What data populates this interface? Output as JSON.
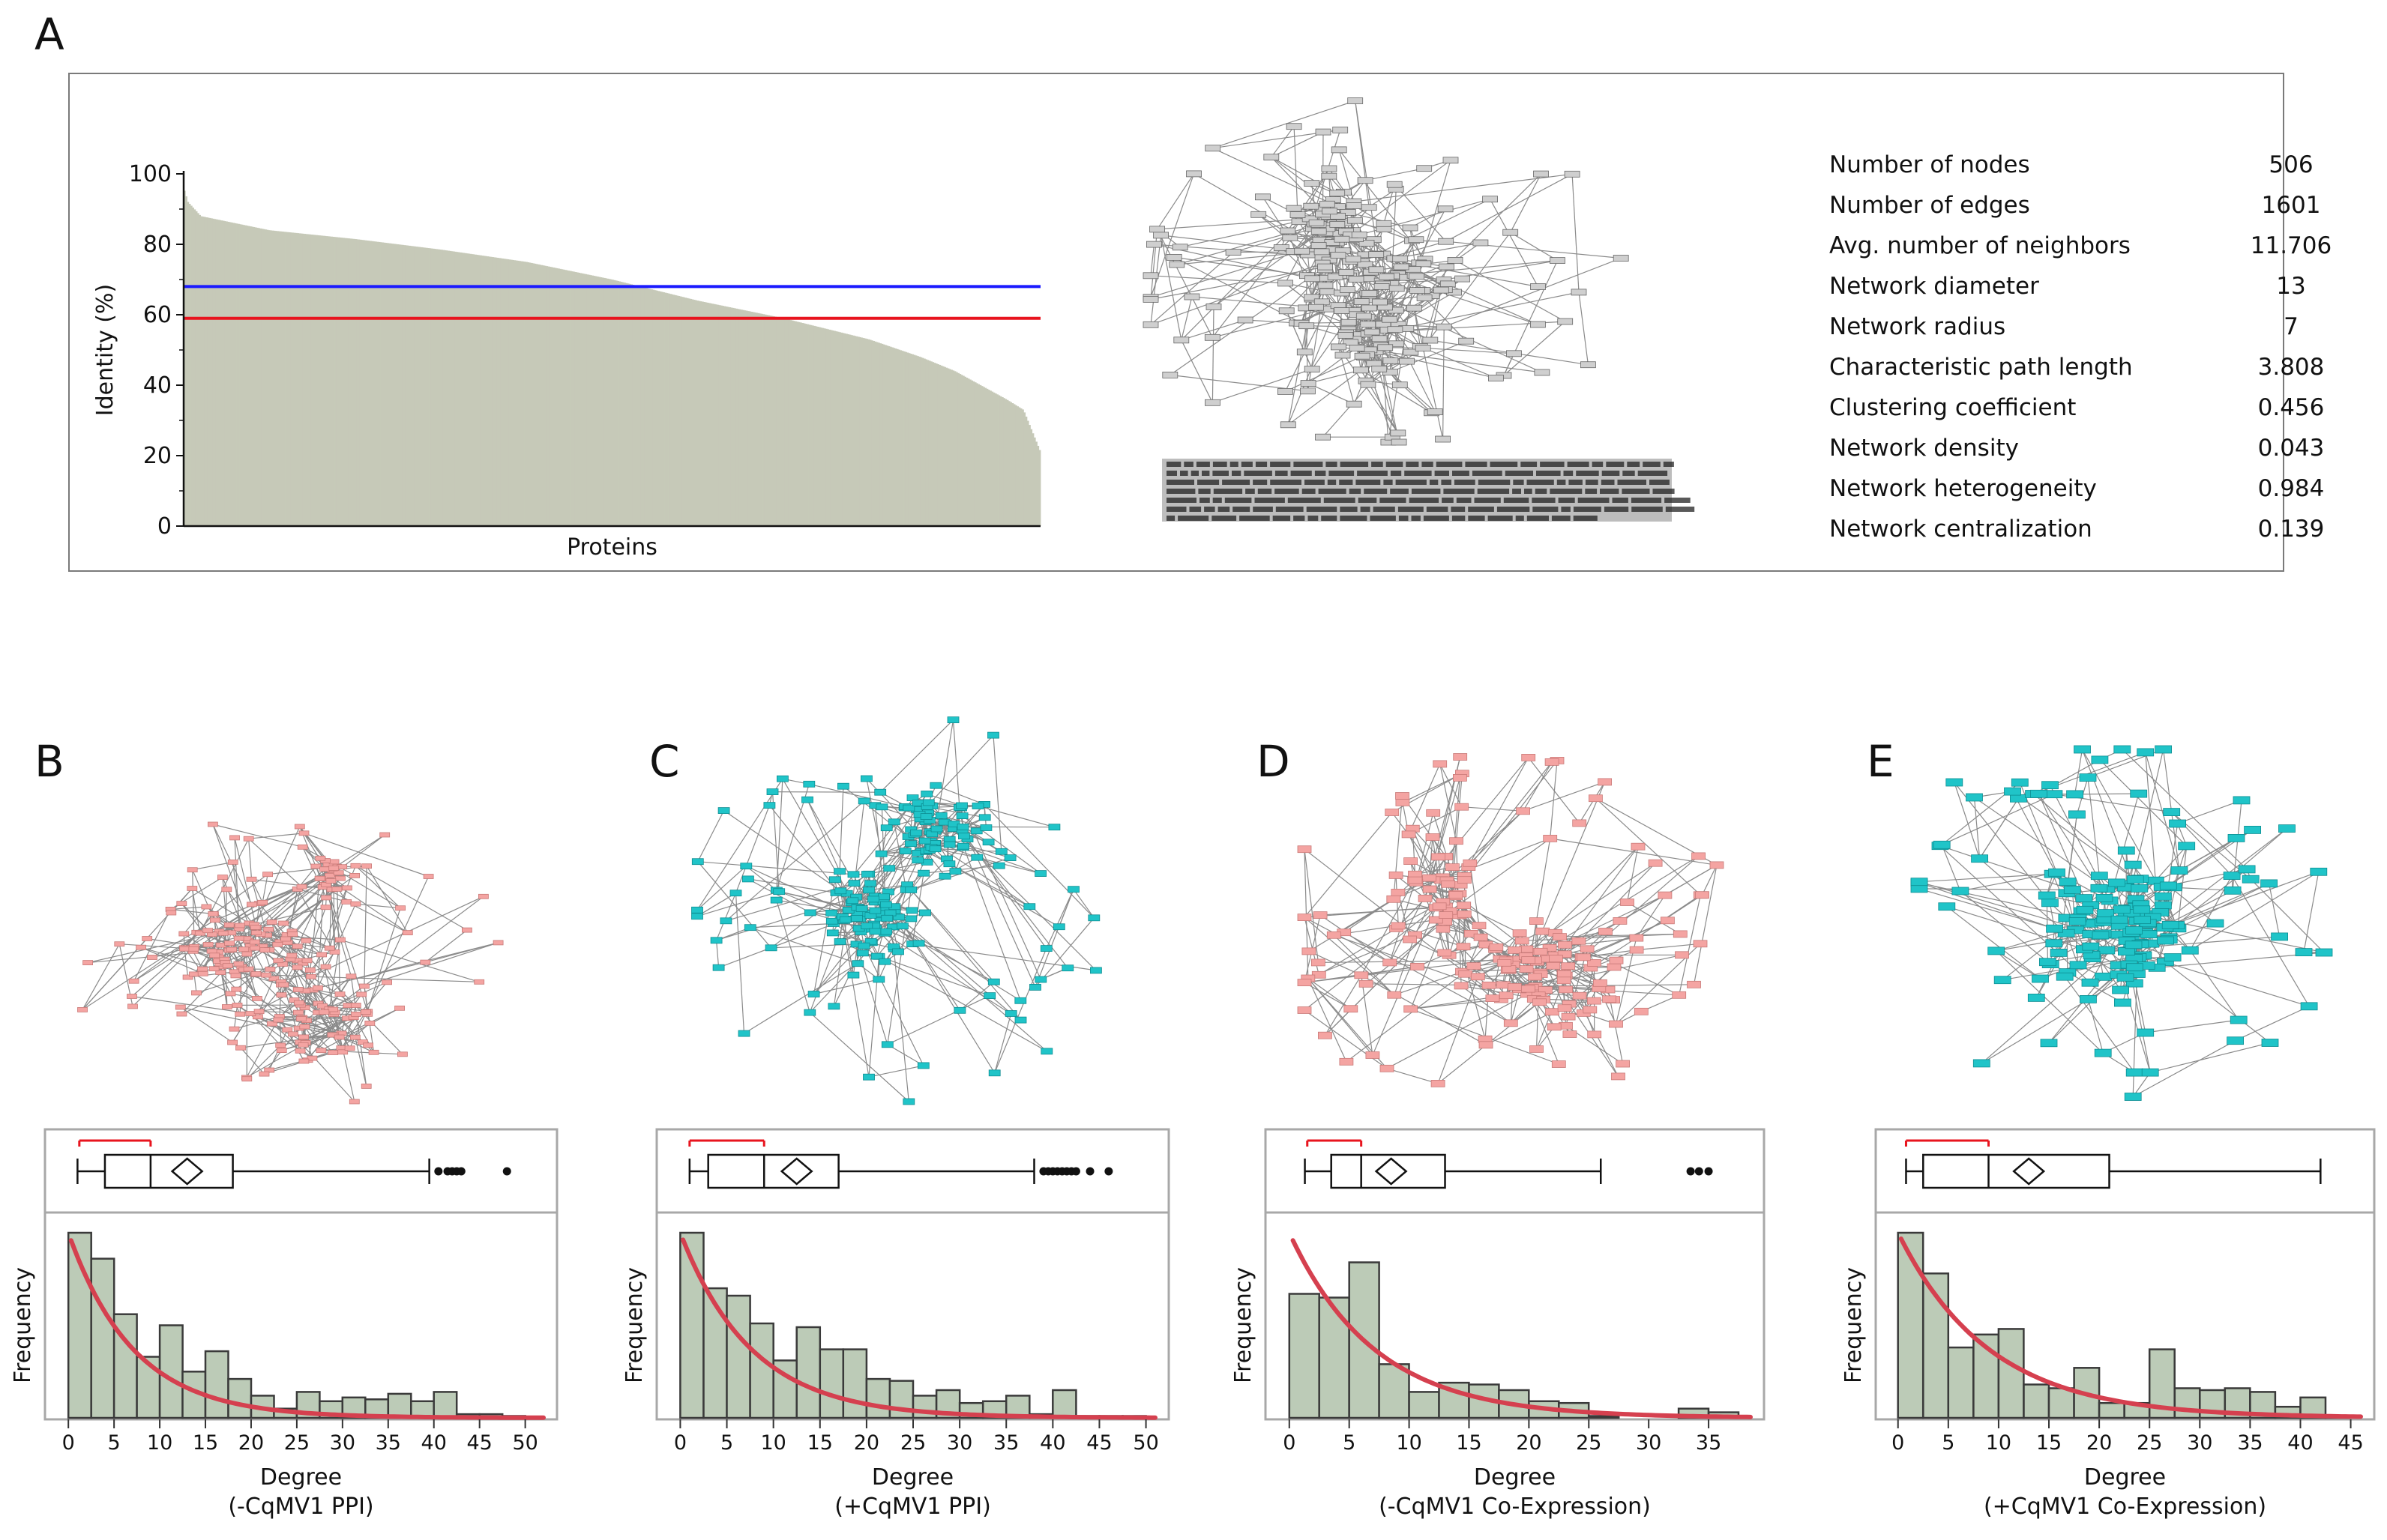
{
  "panels": {
    "A": "A",
    "B": "B",
    "C": "C",
    "D": "D",
    "E": "E"
  },
  "colors": {
    "bar_fill": "#c6c9b8",
    "hist_fill": "#bccbb7",
    "hist_stroke": "#3a3a3a",
    "blue_line": "#1a1aff",
    "red_line": "#e8141e",
    "fit_curve": "#d5404f",
    "pink_node": "#f4a4a2",
    "cyan_node": "#20c4c8",
    "gray_node": "#cfcfcf",
    "frame": "#a8a8a8"
  },
  "stats": {
    "rows": [
      {
        "label": "Number of nodes",
        "value": "506"
      },
      {
        "label": "Number of edges",
        "value": "1601"
      },
      {
        "label": "Avg. number of neighbors",
        "value": "11.706"
      },
      {
        "label": "Network diameter",
        "value": "13"
      },
      {
        "label": "Network radius",
        "value": "7"
      },
      {
        "label": "Characteristic path length",
        "value": "3.808"
      },
      {
        "label": "Clustering coefficient",
        "value": "0.456"
      },
      {
        "label": "Network density",
        "value": "0.043"
      },
      {
        "label": "Network heterogeneity",
        "value": "0.984"
      },
      {
        "label": "Network centralization",
        "value": "0.139"
      }
    ]
  },
  "chart_data": [
    {
      "id": "A",
      "type": "bar",
      "xlabel": "Proteins",
      "ylabel": "Identity (%)",
      "ylim": [
        0,
        100
      ],
      "yticks": [
        0,
        20,
        40,
        60,
        80,
        100
      ],
      "n_bars": 506,
      "sorted_profile": {
        "x_fraction": [
          0,
          0.005,
          0.02,
          0.05,
          0.1,
          0.2,
          0.3,
          0.4,
          0.5,
          0.6,
          0.7,
          0.8,
          0.86,
          0.9,
          0.93,
          0.96,
          0.98,
          0.99,
          1
        ],
        "identity": [
          96,
          92,
          88,
          86.5,
          84,
          81.5,
          78.5,
          75,
          70,
          64,
          59,
          53,
          48,
          44,
          40,
          36,
          33,
          27,
          21
        ]
      },
      "reference_lines": [
        {
          "color": "blue",
          "y": 68
        },
        {
          "color": "red",
          "y": 59
        }
      ]
    },
    {
      "id": "B",
      "type": "bar",
      "xlabel": "Degree",
      "subtitle": "(-CqMV1 PPI)",
      "ylabel": "Frequency",
      "xlim": [
        -1,
        52
      ],
      "xticks": [
        0,
        5,
        10,
        15,
        20,
        25,
        30,
        35,
        40,
        45,
        50
      ],
      "bin_width": 2.5,
      "bin_start": 0,
      "bin_heights": [
        100,
        86,
        56,
        33,
        50,
        25,
        36,
        21,
        12,
        5,
        14,
        9,
        11,
        10,
        13,
        9,
        14,
        2,
        2,
        1
      ],
      "fit_curve": {
        "type": "exponential",
        "y0": 100,
        "rate": 0.14,
        "x_start": 0.3,
        "x_end": 52
      },
      "boxplot": {
        "whisker_low": 1,
        "q1": 4,
        "median": 9,
        "q3": 18,
        "whisker_high": 39.5,
        "mean": 13,
        "outliers": [
          40.5,
          41.5,
          42,
          42.5,
          43,
          48
        ],
        "bracket": [
          1.2,
          9
        ]
      }
    },
    {
      "id": "C",
      "type": "bar",
      "xlabel": "Degree",
      "subtitle": "(+CqMV1 PPI)",
      "ylabel": "Frequency",
      "xlim": [
        -1,
        51
      ],
      "xticks": [
        0,
        5,
        10,
        15,
        20,
        25,
        30,
        35,
        40,
        45,
        50
      ],
      "bin_width": 2.5,
      "bin_start": 0,
      "bin_heights": [
        100,
        70,
        66,
        51,
        31,
        49,
        37,
        37,
        21,
        20,
        12,
        15,
        8,
        9,
        12,
        2,
        15,
        1,
        1,
        1
      ],
      "fit_curve": {
        "type": "exponential",
        "y0": 100,
        "rate": 0.13,
        "x_start": 0.3,
        "x_end": 51
      },
      "boxplot": {
        "whisker_low": 1,
        "q1": 3,
        "median": 9,
        "q3": 17,
        "whisker_high": 38,
        "mean": 12.5,
        "outliers": [
          39,
          39.5,
          40,
          40.5,
          41,
          41.5,
          42,
          42.5,
          44,
          46
        ],
        "bracket": [
          1,
          9
        ]
      }
    },
    {
      "id": "D",
      "type": "bar",
      "xlabel": "Degree",
      "subtitle": "(-CqMV1 Co-Expression)",
      "ylabel": "Frequency",
      "xlim": [
        -0.8,
        38.5
      ],
      "xticks": [
        0,
        5,
        10,
        15,
        20,
        25,
        30,
        35
      ],
      "bin_width": 2.5,
      "bin_start": 0,
      "bin_heights": [
        67,
        65,
        84,
        29,
        14,
        19,
        18,
        15,
        9,
        8,
        1,
        0,
        0,
        5,
        3
      ],
      "fit_curve": {
        "type": "exponential",
        "y0": 100,
        "rate": 0.14,
        "x_start": 0.3,
        "x_end": 38.5
      },
      "boxplot": {
        "whisker_low": 1.3,
        "q1": 3.5,
        "median": 6,
        "q3": 13,
        "whisker_high": 26,
        "mean": 8.5,
        "outliers": [
          33.5,
          34.2,
          35
        ],
        "bracket": [
          1.5,
          6
        ]
      }
    },
    {
      "id": "E",
      "type": "bar",
      "xlabel": "Degree",
      "subtitle": "(+CqMV1 Co-Expression)",
      "ylabel": "Frequency",
      "xlim": [
        -0.8,
        46
      ],
      "xticks": [
        0,
        5,
        10,
        15,
        20,
        25,
        30,
        35,
        40,
        45
      ],
      "bin_width": 2.5,
      "bin_start": 0,
      "bin_heights": [
        100,
        78,
        38,
        45,
        48,
        18,
        16,
        27,
        8,
        8,
        37,
        16,
        15,
        16,
        14,
        6,
        11,
        1
      ],
      "fit_curve": {
        "type": "exponential",
        "y0": 100,
        "rate": 0.11,
        "x_start": 0.3,
        "x_end": 46
      },
      "boxplot": {
        "whisker_low": 0.8,
        "q1": 2.5,
        "median": 9,
        "q3": 21,
        "whisker_high": 42,
        "mean": 13,
        "outliers": [],
        "bracket": [
          0.8,
          9
        ]
      }
    }
  ]
}
